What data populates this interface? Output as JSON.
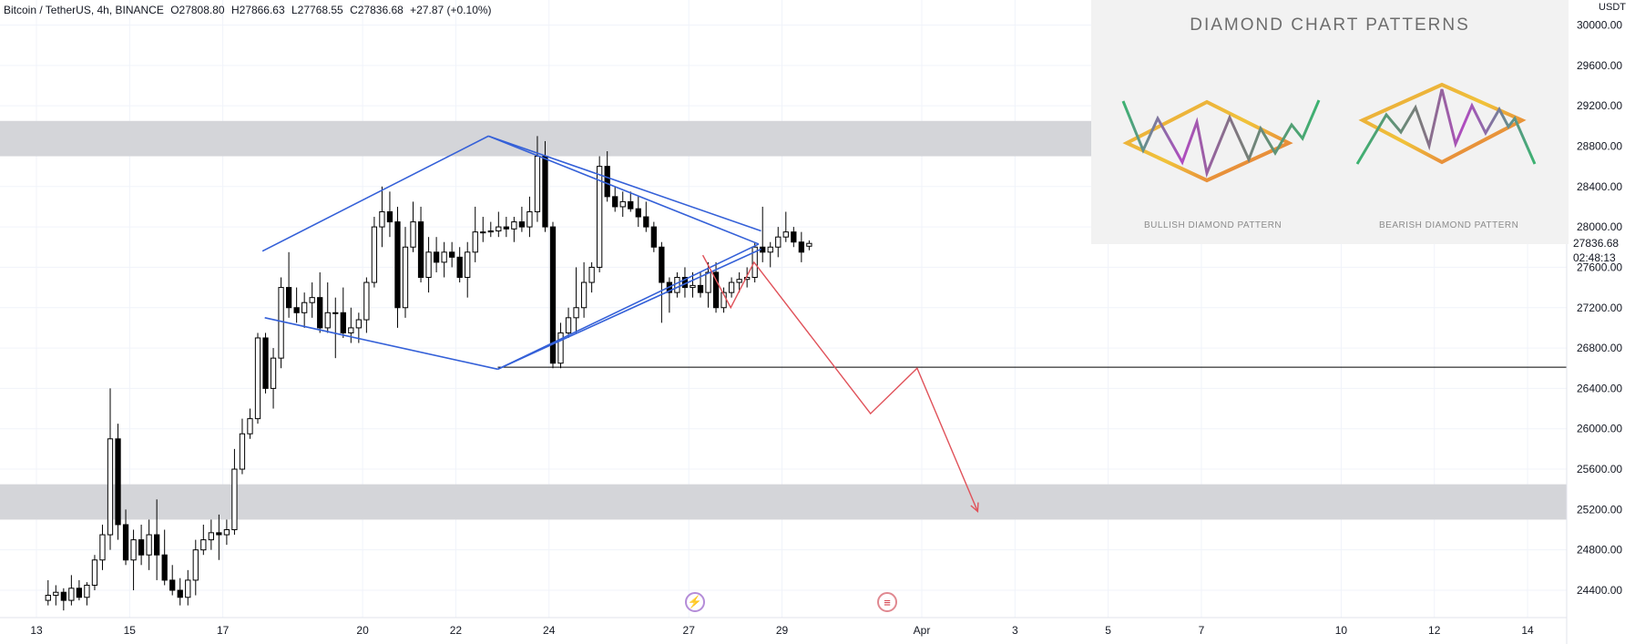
{
  "header": {
    "symbol": "Bitcoin / TetherUS, 4h, BINANCE",
    "open": "O27808.80",
    "high": "H27866.63",
    "low": "L27768.55",
    "close": "C27836.68",
    "change": "+27.87 (+0.10%)"
  },
  "price_scale": {
    "currency": "USDT",
    "last_price": "27836.68",
    "countdown": "02:48:13"
  },
  "inset": {
    "title": "DIAMOND CHART PATTERNS",
    "bullish_caption": "BULLISH DIAMOND PATTERN",
    "bearish_caption": "BEARISH DIAMOND PATTERN"
  },
  "events": [
    {
      "name": "earnings",
      "icon": "lightning-icon"
    },
    {
      "name": "economic-event",
      "icon": "us-flag-icon"
    }
  ],
  "colors": {
    "up": "#ffffff",
    "down": "#000000",
    "zone": "#d4d5d9",
    "diamond": "#3460d8",
    "projection": "#e0525a",
    "level": "#000000"
  },
  "chart_data": {
    "type": "candlestick",
    "title": "",
    "ylim": [
      24200,
      30100
    ],
    "y_ticks": [
      "30000.00",
      "29600.00",
      "29200.00",
      "28800.00",
      "28400.00",
      "28000.00",
      "27600.00",
      "27200.00",
      "26800.00",
      "26400.00",
      "26000.00",
      "25600.00",
      "25200.00",
      "24800.00",
      "24400.00"
    ],
    "x_ticks": [
      "13",
      "15",
      "17",
      "20",
      "22",
      "24",
      "27",
      "29",
      "Apr",
      "3",
      "5",
      "7",
      "10",
      "12",
      "14"
    ],
    "x_tick_days": [
      13,
      15,
      17,
      20,
      22,
      24,
      27,
      29,
      32,
      34,
      36,
      38,
      41,
      43,
      45
    ],
    "zones": [
      [
        28700,
        29050
      ],
      [
        25100,
        25450
      ]
    ],
    "horizontal_level": 26610,
    "diamond": [
      {
        "day": 17.85,
        "price": 27760
      },
      {
        "day": 22.7,
        "price": 28900
      },
      {
        "day": 27.5,
        "price": 28260
      },
      {
        "day": 28.5,
        "price": 27830
      },
      {
        "day": 27.5,
        "price": 27600
      },
      {
        "day": 22.9,
        "price": 26590
      },
      {
        "day": 17.9,
        "price": 27100
      }
    ],
    "projection": [
      {
        "day": 27.3,
        "price": 27720
      },
      {
        "day": 27.9,
        "price": 27200
      },
      {
        "day": 28.4,
        "price": 27650
      },
      {
        "day": 30.9,
        "price": 26150
      },
      {
        "day": 31.9,
        "price": 26600
      },
      {
        "day": 33.2,
        "price": 25180
      }
    ],
    "candles": [
      {
        "o": 24300,
        "h": 24500,
        "l": 24250,
        "c": 24350
      },
      {
        "o": 24350,
        "h": 24450,
        "l": 24250,
        "c": 24380
      },
      {
        "o": 24380,
        "h": 24420,
        "l": 24200,
        "c": 24300
      },
      {
        "o": 24300,
        "h": 24550,
        "l": 24250,
        "c": 24420
      },
      {
        "o": 24420,
        "h": 24500,
        "l": 24300,
        "c": 24330
      },
      {
        "o": 24330,
        "h": 24480,
        "l": 24250,
        "c": 24450
      },
      {
        "o": 24450,
        "h": 24750,
        "l": 24400,
        "c": 24700
      },
      {
        "o": 24700,
        "h": 25050,
        "l": 24600,
        "c": 24950
      },
      {
        "o": 24950,
        "h": 26400,
        "l": 24800,
        "c": 25900
      },
      {
        "o": 25900,
        "h": 26050,
        "l": 24900,
        "c": 25050
      },
      {
        "o": 25050,
        "h": 25200,
        "l": 24650,
        "c": 24700
      },
      {
        "o": 24700,
        "h": 25000,
        "l": 24400,
        "c": 24900
      },
      {
        "o": 24900,
        "h": 25050,
        "l": 24650,
        "c": 24750
      },
      {
        "o": 24750,
        "h": 25100,
        "l": 24600,
        "c": 24950
      },
      {
        "o": 24950,
        "h": 25300,
        "l": 24500,
        "c": 24750
      },
      {
        "o": 24750,
        "h": 25000,
        "l": 24450,
        "c": 24500
      },
      {
        "o": 24500,
        "h": 24650,
        "l": 24350,
        "c": 24400
      },
      {
        "o": 24400,
        "h": 24520,
        "l": 24250,
        "c": 24330
      },
      {
        "o": 24330,
        "h": 24600,
        "l": 24250,
        "c": 24500
      },
      {
        "o": 24500,
        "h": 24900,
        "l": 24350,
        "c": 24800
      },
      {
        "o": 24800,
        "h": 25050,
        "l": 24750,
        "c": 24900
      },
      {
        "o": 24900,
        "h": 25100,
        "l": 24800,
        "c": 24970
      },
      {
        "o": 24970,
        "h": 25150,
        "l": 24700,
        "c": 24950
      },
      {
        "o": 24950,
        "h": 25100,
        "l": 24850,
        "c": 25000
      },
      {
        "o": 25000,
        "h": 25800,
        "l": 24950,
        "c": 25600
      },
      {
        "o": 25600,
        "h": 26100,
        "l": 25550,
        "c": 25950
      },
      {
        "o": 25950,
        "h": 26200,
        "l": 25900,
        "c": 26100
      },
      {
        "o": 26100,
        "h": 26950,
        "l": 26050,
        "c": 26900
      },
      {
        "o": 26900,
        "h": 26950,
        "l": 26350,
        "c": 26400
      },
      {
        "o": 26400,
        "h": 26800,
        "l": 26200,
        "c": 26700
      },
      {
        "o": 26700,
        "h": 27500,
        "l": 26600,
        "c": 27400
      },
      {
        "o": 27400,
        "h": 27750,
        "l": 27100,
        "c": 27200
      },
      {
        "o": 27200,
        "h": 27400,
        "l": 27050,
        "c": 27150
      },
      {
        "o": 27150,
        "h": 27350,
        "l": 27000,
        "c": 27250
      },
      {
        "o": 27250,
        "h": 27450,
        "l": 27100,
        "c": 27300
      },
      {
        "o": 27300,
        "h": 27550,
        "l": 26950,
        "c": 27000
      },
      {
        "o": 27000,
        "h": 27450,
        "l": 26950,
        "c": 27150
      },
      {
        "o": 27150,
        "h": 27300,
        "l": 26700,
        "c": 27150
      },
      {
        "o": 27150,
        "h": 27400,
        "l": 26900,
        "c": 26950
      },
      {
        "o": 26950,
        "h": 27200,
        "l": 26850,
        "c": 27000
      },
      {
        "o": 27000,
        "h": 27150,
        "l": 26850,
        "c": 27080
      },
      {
        "o": 27080,
        "h": 27500,
        "l": 26950,
        "c": 27450
      },
      {
        "o": 27450,
        "h": 28100,
        "l": 27400,
        "c": 28000
      },
      {
        "o": 28000,
        "h": 28400,
        "l": 27800,
        "c": 28150
      },
      {
        "o": 28150,
        "h": 28350,
        "l": 27900,
        "c": 28050
      },
      {
        "o": 28050,
        "h": 28200,
        "l": 27000,
        "c": 27200
      },
      {
        "o": 27200,
        "h": 28000,
        "l": 27100,
        "c": 27800
      },
      {
        "o": 27800,
        "h": 28250,
        "l": 27750,
        "c": 28050
      },
      {
        "o": 28050,
        "h": 28200,
        "l": 27450,
        "c": 27500
      },
      {
        "o": 27500,
        "h": 27900,
        "l": 27350,
        "c": 27750
      },
      {
        "o": 27750,
        "h": 27900,
        "l": 27550,
        "c": 27650
      },
      {
        "o": 27650,
        "h": 27850,
        "l": 27500,
        "c": 27750
      },
      {
        "o": 27750,
        "h": 27850,
        "l": 27600,
        "c": 27700
      },
      {
        "o": 27700,
        "h": 27800,
        "l": 27450,
        "c": 27500
      },
      {
        "o": 27500,
        "h": 27850,
        "l": 27300,
        "c": 27750
      },
      {
        "o": 27750,
        "h": 28200,
        "l": 27650,
        "c": 27950
      },
      {
        "o": 27950,
        "h": 28100,
        "l": 27850,
        "c": 27950
      },
      {
        "o": 27950,
        "h": 28050,
        "l": 27900,
        "c": 27960
      },
      {
        "o": 27960,
        "h": 28150,
        "l": 27900,
        "c": 28000
      },
      {
        "o": 28000,
        "h": 28100,
        "l": 27900,
        "c": 27980
      },
      {
        "o": 27980,
        "h": 28100,
        "l": 27850,
        "c": 28050
      },
      {
        "o": 28050,
        "h": 28200,
        "l": 27950,
        "c": 28000
      },
      {
        "o": 28000,
        "h": 28300,
        "l": 27900,
        "c": 28150
      },
      {
        "o": 28150,
        "h": 28900,
        "l": 28050,
        "c": 28700
      },
      {
        "o": 28700,
        "h": 28850,
        "l": 27950,
        "c": 28000
      },
      {
        "o": 28000,
        "h": 28050,
        "l": 26600,
        "c": 26650
      },
      {
        "o": 26650,
        "h": 27050,
        "l": 26600,
        "c": 26950
      },
      {
        "o": 26950,
        "h": 27200,
        "l": 26900,
        "c": 27100
      },
      {
        "o": 27100,
        "h": 27600,
        "l": 26950,
        "c": 27200
      },
      {
        "o": 27200,
        "h": 27650,
        "l": 27100,
        "c": 27450
      },
      {
        "o": 27450,
        "h": 27650,
        "l": 27350,
        "c": 27600
      },
      {
        "o": 27600,
        "h": 28700,
        "l": 27550,
        "c": 28600
      },
      {
        "o": 28600,
        "h": 28750,
        "l": 28250,
        "c": 28300
      },
      {
        "o": 28300,
        "h": 28400,
        "l": 28150,
        "c": 28200
      },
      {
        "o": 28200,
        "h": 28350,
        "l": 28100,
        "c": 28250
      },
      {
        "o": 28250,
        "h": 28350,
        "l": 28150,
        "c": 28180
      },
      {
        "o": 28180,
        "h": 28300,
        "l": 28000,
        "c": 28100
      },
      {
        "o": 28100,
        "h": 28250,
        "l": 27950,
        "c": 28000
      },
      {
        "o": 28000,
        "h": 28050,
        "l": 27750,
        "c": 27800
      },
      {
        "o": 27800,
        "h": 27850,
        "l": 27050,
        "c": 27450
      },
      {
        "o": 27450,
        "h": 27500,
        "l": 27150,
        "c": 27350
      },
      {
        "o": 27350,
        "h": 27550,
        "l": 27300,
        "c": 27500
      },
      {
        "o": 27500,
        "h": 27600,
        "l": 27300,
        "c": 27400
      },
      {
        "o": 27400,
        "h": 27550,
        "l": 27300,
        "c": 27420
      },
      {
        "o": 27420,
        "h": 27550,
        "l": 27300,
        "c": 27350
      },
      {
        "o": 27350,
        "h": 27650,
        "l": 27200,
        "c": 27550
      },
      {
        "o": 27550,
        "h": 27650,
        "l": 27150,
        "c": 27200
      },
      {
        "o": 27200,
        "h": 27400,
        "l": 27150,
        "c": 27350
      },
      {
        "o": 27350,
        "h": 27500,
        "l": 27300,
        "c": 27450
      },
      {
        "o": 27450,
        "h": 27550,
        "l": 27350,
        "c": 27480
      },
      {
        "o": 27480,
        "h": 27600,
        "l": 27400,
        "c": 27500
      },
      {
        "o": 27500,
        "h": 27850,
        "l": 27450,
        "c": 27800
      },
      {
        "o": 27800,
        "h": 28200,
        "l": 27650,
        "c": 27750
      },
      {
        "o": 27750,
        "h": 27850,
        "l": 27600,
        "c": 27800
      },
      {
        "o": 27800,
        "h": 28000,
        "l": 27700,
        "c": 27900
      },
      {
        "o": 27900,
        "h": 28150,
        "l": 27850,
        "c": 27950
      },
      {
        "o": 27950,
        "h": 28000,
        "l": 27800,
        "c": 27850
      },
      {
        "o": 27850,
        "h": 27950,
        "l": 27650,
        "c": 27750
      },
      {
        "o": 27808.8,
        "h": 27866.63,
        "l": 27768.55,
        "c": 27836.68
      }
    ]
  }
}
